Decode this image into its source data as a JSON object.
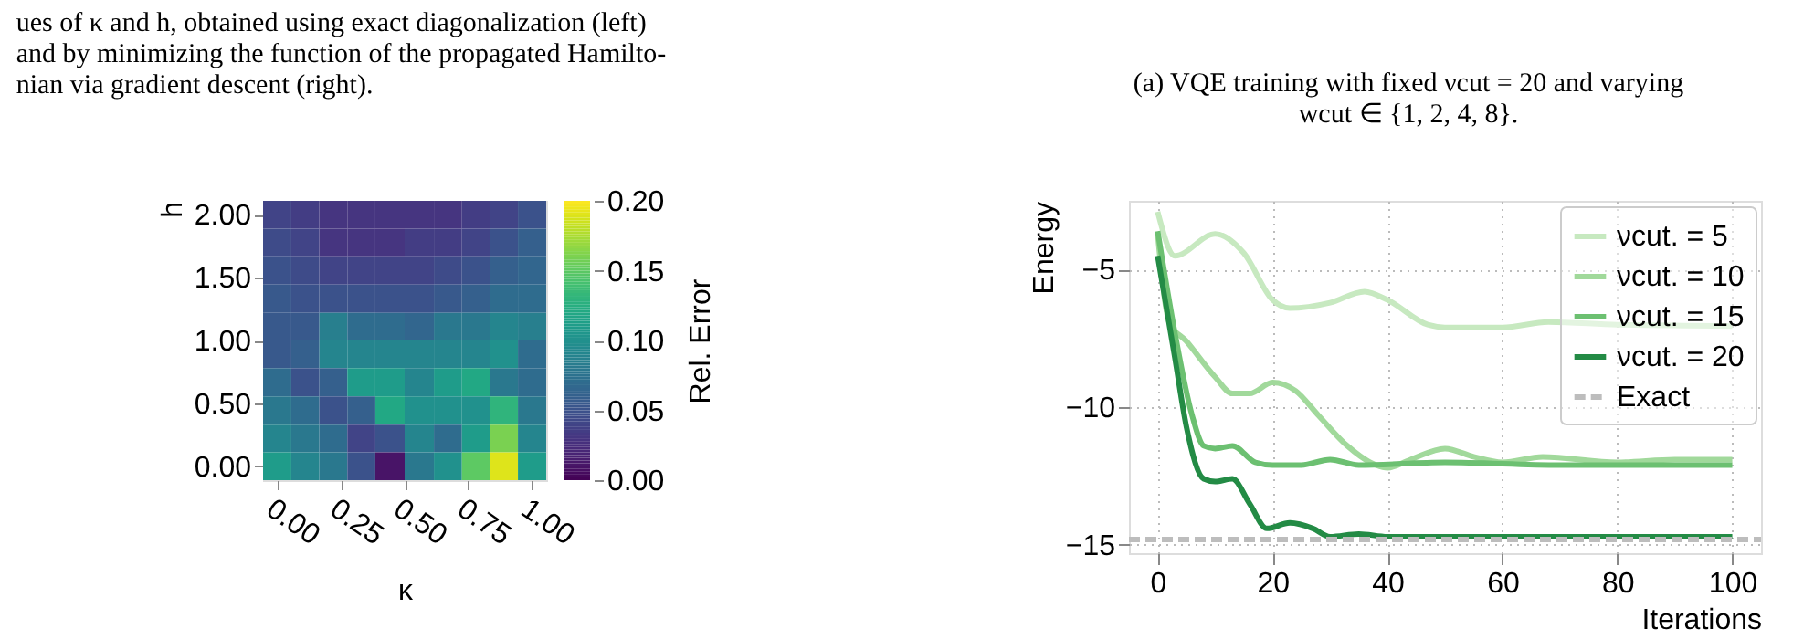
{
  "chart_data": [
    {
      "type": "heatmap",
      "annotations": [
        "ues of κ and h, obtained using exact diagonalization (left)\nand by minimizing the function of the propagated Hamilto-\nnian via gradient descent (right)."
      ],
      "xlabel": "κ",
      "ylabel": "h",
      "clabel": "Rel. Error",
      "x": [
        0,
        0.11,
        0.22,
        0.33,
        0.44,
        0.56,
        0.67,
        0.78,
        0.89,
        1
      ],
      "y": [
        2,
        1.78,
        1.56,
        1.33,
        1.11,
        0.89,
        0.67,
        0.44,
        0.22,
        0
      ],
      "cells": [
        [
          0.04,
          0.035,
          0.03,
          0.03,
          0.03,
          0.03,
          0.03,
          0.035,
          0.04,
          0.05
        ],
        [
          0.045,
          0.04,
          0.03,
          0.03,
          0.03,
          0.035,
          0.035,
          0.04,
          0.05,
          0.06
        ],
        [
          0.05,
          0.045,
          0.04,
          0.04,
          0.04,
          0.04,
          0.045,
          0.05,
          0.06,
          0.065
        ],
        [
          0.055,
          0.05,
          0.05,
          0.05,
          0.05,
          0.05,
          0.055,
          0.06,
          0.07,
          0.07
        ],
        [
          0.055,
          0.055,
          0.085,
          0.07,
          0.07,
          0.065,
          0.08,
          0.08,
          0.09,
          0.085
        ],
        [
          0.055,
          0.06,
          0.09,
          0.09,
          0.09,
          0.09,
          0.09,
          0.09,
          0.1,
          0.07
        ],
        [
          0.07,
          0.05,
          0.06,
          0.11,
          0.11,
          0.09,
          0.11,
          0.12,
          0.08,
          0.07
        ],
        [
          0.08,
          0.07,
          0.05,
          0.06,
          0.12,
          0.1,
          0.1,
          0.1,
          0.13,
          0.08
        ],
        [
          0.09,
          0.08,
          0.07,
          0.04,
          0.05,
          0.09,
          0.07,
          0.11,
          0.16,
          0.09
        ],
        [
          0.11,
          0.09,
          0.08,
          0.05,
          0.01,
          0.08,
          0.1,
          0.15,
          0.19,
          0.11
        ]
      ],
      "xlim": [
        -0.056,
        1.056
      ],
      "xticks": [
        {
          "value": 0,
          "label": "0.00"
        },
        {
          "value": 0.25,
          "label": "0.25"
        },
        {
          "value": 0.5,
          "label": "0.50"
        },
        {
          "value": 0.75,
          "label": "0.75"
        },
        {
          "value": 1,
          "label": "1.00"
        }
      ],
      "ylim": [
        -0.111,
        2.111
      ],
      "yticks": [
        {
          "value": 0,
          "label": "0.00"
        },
        {
          "value": 0.5,
          "label": "0.50"
        },
        {
          "value": 1,
          "label": "1.00"
        },
        {
          "value": 1.5,
          "label": "1.50"
        },
        {
          "value": 2,
          "label": "2.00"
        }
      ],
      "clim": [
        0,
        0.2
      ],
      "cticks": [
        {
          "value": 0,
          "label": "0.00"
        },
        {
          "value": 0.05,
          "label": "0.05"
        },
        {
          "value": 0.1,
          "label": "0.10"
        },
        {
          "value": 0.15,
          "label": "0.15"
        },
        {
          "value": 0.2,
          "label": "0.20"
        }
      ]
    },
    {
      "type": "line",
      "title": "(a) VQE training with fixed νcut = 20 and varying\nwcut ∈ {1, 2, 4, 8}.",
      "xlabel": "Iterations",
      "ylabel": "Energy",
      "series": [
        {
          "name": "νcut. = 5",
          "color": "#c7e9c0",
          "line_style": "solid",
          "x": [
            0,
            3,
            10,
            15,
            20,
            23,
            30,
            36,
            40,
            47,
            50,
            60,
            68,
            80,
            100
          ],
          "values": [
            -2.9,
            -4.5,
            -3.7,
            -4.4,
            -6.1,
            -6.4,
            -6.2,
            -5.8,
            -6.1,
            -7.0,
            -7.1,
            -7.1,
            -6.9,
            -7.0,
            -7.05
          ]
        },
        {
          "name": "νcut. = 10",
          "color": "#a1d99b",
          "line_style": "solid",
          "x": [
            0,
            2,
            5,
            10,
            13,
            16,
            20,
            24,
            28,
            33,
            38,
            40,
            44,
            50,
            55,
            60,
            67,
            80,
            90,
            100
          ],
          "values": [
            -3.7,
            -6.9,
            -7.6,
            -8.9,
            -9.5,
            -9.5,
            -9.1,
            -9.4,
            -10.3,
            -11.4,
            -12.1,
            -12.2,
            -11.9,
            -11.5,
            -11.8,
            -12.0,
            -11.8,
            -12.0,
            -11.9,
            -11.9
          ]
        },
        {
          "name": "νcut. = 15",
          "color": "#6cc071",
          "line_style": "solid",
          "x": [
            0,
            3,
            6,
            8,
            10,
            13,
            17,
            20,
            25,
            30,
            35,
            50,
            70,
            100
          ],
          "values": [
            -3.6,
            -7.3,
            -10.3,
            -11.4,
            -11.5,
            -11.4,
            -12.0,
            -12.1,
            -12.1,
            -11.9,
            -12.1,
            -12.0,
            -12.1,
            -12.1
          ]
        },
        {
          "name": "νcut. = 20",
          "color": "#238b45",
          "line_style": "solid",
          "x": [
            0,
            3,
            5,
            8,
            10,
            13,
            16,
            19,
            23,
            27,
            30,
            35,
            40,
            100
          ],
          "values": [
            -4.5,
            -8.2,
            -10.7,
            -12.6,
            -12.7,
            -12.6,
            -13.5,
            -14.4,
            -14.2,
            -14.4,
            -14.7,
            -14.6,
            -14.7,
            -14.7
          ]
        },
        {
          "name": "Exact",
          "color": "#bdbdbd",
          "line_style": "dashed",
          "x": [
            -5,
            105
          ],
          "values": [
            -14.8,
            -14.8
          ]
        }
      ],
      "xlim": [
        -5,
        105
      ],
      "xticks": [
        0,
        20,
        40,
        60,
        80,
        100
      ],
      "ylim": [
        -15.3,
        -2.5
      ],
      "yticks": [
        -15,
        -10,
        -5
      ],
      "grid": true,
      "legend": "top right",
      "marker": "none"
    }
  ]
}
